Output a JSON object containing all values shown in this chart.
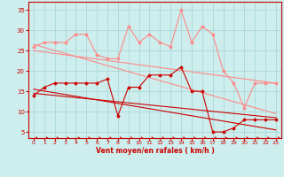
{
  "xlabel": "Vent moyen/en rafales ( km/h )",
  "bg": "#cdeeed",
  "grid_color": "#aad8d8",
  "xlim": [
    -0.5,
    23.5
  ],
  "ylim": [
    3.5,
    37
  ],
  "yticks": [
    5,
    10,
    15,
    20,
    25,
    30,
    35
  ],
  "xticks": [
    0,
    1,
    2,
    3,
    4,
    5,
    6,
    7,
    8,
    9,
    10,
    11,
    12,
    13,
    14,
    15,
    16,
    17,
    18,
    19,
    20,
    21,
    22,
    23
  ],
  "series": [
    {
      "color": "#ff8888",
      "lw": 0.8,
      "marker": "D",
      "ms": 1.5,
      "x": [
        0,
        1,
        2,
        3,
        4,
        5,
        6,
        7,
        8,
        9,
        10,
        11,
        12,
        13,
        14,
        15,
        16,
        17,
        18,
        19,
        20,
        21,
        22,
        23
      ],
      "y": [
        26,
        27,
        27,
        27,
        29,
        29,
        24,
        23,
        23,
        31,
        27,
        29,
        27,
        26,
        35,
        27,
        31,
        29,
        20,
        17,
        11,
        17,
        17,
        17
      ]
    },
    {
      "color": "#ff8888",
      "lw": 0.8,
      "marker": null,
      "x": [
        0,
        23
      ],
      "y": [
        26.5,
        9.5
      ]
    },
    {
      "color": "#ff8888",
      "lw": 0.8,
      "marker": null,
      "x": [
        0,
        23
      ],
      "y": [
        25.0,
        17.0
      ]
    },
    {
      "color": "#cc0000",
      "lw": 0.8,
      "marker": "D",
      "ms": 1.5,
      "x": [
        0,
        1,
        2,
        3,
        4,
        5,
        6,
        7,
        8,
        9,
        10,
        11,
        12,
        13,
        14,
        15,
        16,
        17,
        18,
        19,
        20,
        21,
        22,
        23
      ],
      "y": [
        14,
        16,
        17,
        17,
        17,
        17,
        17,
        18,
        9,
        16,
        16,
        19,
        19,
        19,
        21,
        15,
        15,
        5,
        5,
        6,
        8,
        8,
        8,
        8
      ]
    },
    {
      "color": "#cc0000",
      "lw": 0.8,
      "marker": null,
      "x": [
        0,
        23
      ],
      "y": [
        15.5,
        5.5
      ]
    },
    {
      "color": "#cc0000",
      "lw": 0.8,
      "marker": null,
      "x": [
        0,
        23
      ],
      "y": [
        14.5,
        8.5
      ]
    }
  ]
}
